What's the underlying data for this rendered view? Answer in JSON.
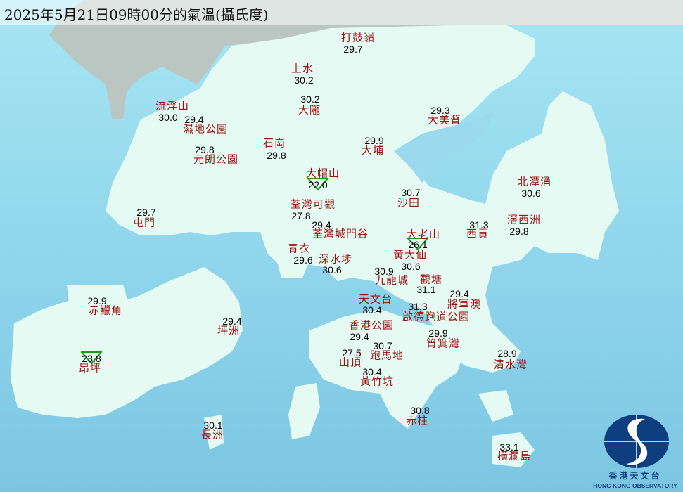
{
  "title": "2025年5月21日09時00分的氣溫(攝氏度)",
  "colors": {
    "sea": "#8fd3ea",
    "land": "#e6faf4",
    "mainland": "#b9c6c2",
    "station_name": "#a01010",
    "temperature": "#000000",
    "min_marker": "#1a9a1a",
    "logo": "#0d3f80"
  },
  "legend_marker": "green downward triangle marks lowest temperatures",
  "stations": [
    {
      "name": "打鼓嶺",
      "temp": "29.7"
    },
    {
      "name": "上水",
      "temp": "30.2"
    },
    {
      "name": "大隴",
      "temp": "30.2"
    },
    {
      "name": "流浮山",
      "temp": "30.0"
    },
    {
      "name": "濕地公園",
      "temp": "29.4"
    },
    {
      "name": "元朗公園",
      "temp": "29.8"
    },
    {
      "name": "石崗",
      "temp": "29.8"
    },
    {
      "name": "大埔",
      "temp": "29.9"
    },
    {
      "name": "大美督",
      "temp": "29.3"
    },
    {
      "name": "大帽山",
      "temp": "22.0",
      "min_marker": true
    },
    {
      "name": "沙田",
      "temp": "30.7"
    },
    {
      "name": "北潭涌",
      "temp": "30.6"
    },
    {
      "name": "荃灣可觀",
      "temp": "27.8"
    },
    {
      "name": "屯門",
      "temp": "29.7"
    },
    {
      "name": "荃灣城門谷",
      "temp": "29.4"
    },
    {
      "name": "西貢",
      "temp": "31.3"
    },
    {
      "name": "滘西洲",
      "temp": "29.8"
    },
    {
      "name": "大老山",
      "temp": "26.1",
      "min_marker": true
    },
    {
      "name": "青衣",
      "temp": "29.6"
    },
    {
      "name": "深水埗",
      "temp": "30.6"
    },
    {
      "name": "黃大仙",
      "temp": "30.6"
    },
    {
      "name": "九龍城",
      "temp": "30.9"
    },
    {
      "name": "觀塘",
      "temp": "31.1"
    },
    {
      "name": "赤鱲角",
      "temp": "29.9"
    },
    {
      "name": "天文台",
      "temp": "30.4"
    },
    {
      "name": "將軍澳",
      "temp": "29.4"
    },
    {
      "name": "啟德跑道公園",
      "temp": "31.3"
    },
    {
      "name": "坪洲",
      "temp": "29.4"
    },
    {
      "name": "香港公園",
      "temp": "29.4"
    },
    {
      "name": "筲箕灣",
      "temp": "29.9"
    },
    {
      "name": "昂坪",
      "temp": "23.8",
      "min_marker": true
    },
    {
      "name": "山頂",
      "temp": "27.5"
    },
    {
      "name": "跑馬地",
      "temp": "30.7"
    },
    {
      "name": "清水灣",
      "temp": "28.9"
    },
    {
      "name": "黃竹坑",
      "temp": "30.4"
    },
    {
      "name": "赤柱",
      "temp": "30.8"
    },
    {
      "name": "長洲",
      "temp": "30.1"
    },
    {
      "name": "橫瀾島",
      "temp": "33.1"
    }
  ],
  "logo": {
    "cn": "香港天文台",
    "en": "HONG KONG OBSERVATORY"
  }
}
